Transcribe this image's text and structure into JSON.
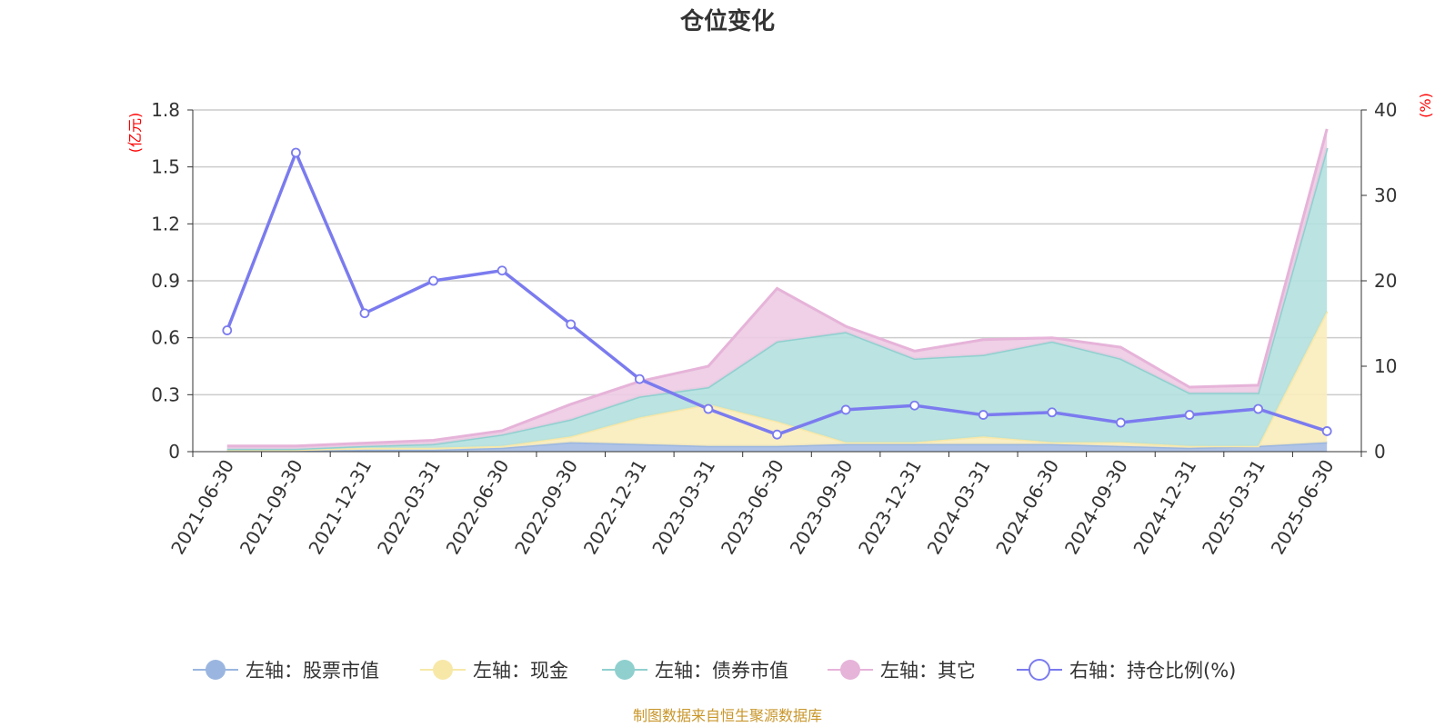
{
  "chart_data": {
    "type": "area",
    "title": "仓位变化",
    "left_axis_unit": "(亿元)",
    "right_axis_unit": "(%)",
    "source": "制图数据来自恒生聚源数据库",
    "categories": [
      "2021-06-30",
      "2021-09-30",
      "2021-12-31",
      "2022-03-31",
      "2022-06-30",
      "2022-09-30",
      "2022-12-31",
      "2023-03-31",
      "2023-06-30",
      "2023-09-30",
      "2023-12-31",
      "2024-03-31",
      "2024-06-30",
      "2024-09-30",
      "2024-12-31",
      "2025-03-31",
      "2025-06-30"
    ],
    "left_ylim": [
      0,
      1.8
    ],
    "left_ticks": [
      0,
      0.3,
      0.6,
      0.9,
      1.2,
      1.5,
      1.8
    ],
    "left_tick_labels": [
      "0",
      "0.3",
      "0.6",
      "0.9",
      "1.2",
      "1.5",
      "1.8"
    ],
    "right_ylim": [
      0,
      40
    ],
    "right_ticks": [
      0,
      10,
      20,
      30,
      40
    ],
    "right_tick_labels": [
      "0",
      "10",
      "20",
      "30",
      "40"
    ],
    "grid": true,
    "legend_position": "bottom",
    "stacked_series": [
      {
        "name": "左轴：股票市值",
        "color": "#9ab6e0",
        "fill": "#a6bde3",
        "values": [
          0.005,
          0.005,
          0.01,
          0.01,
          0.02,
          0.05,
          0.04,
          0.03,
          0.03,
          0.04,
          0.04,
          0.04,
          0.04,
          0.03,
          0.02,
          0.03,
          0.05
        ]
      },
      {
        "name": "左轴：现金",
        "color": "#f8e8a8",
        "fill": "#f9ecbc",
        "values": [
          0.005,
          0.005,
          0.01,
          0.01,
          0.01,
          0.03,
          0.14,
          0.22,
          0.13,
          0.01,
          0.01,
          0.04,
          0.01,
          0.02,
          0.01,
          0.0,
          0.69
        ]
      },
      {
        "name": "左轴：债券市值",
        "color": "#8fd0cf",
        "fill": "#b2e0df",
        "values": [
          0.005,
          0.005,
          0.01,
          0.02,
          0.06,
          0.09,
          0.11,
          0.09,
          0.42,
          0.58,
          0.44,
          0.43,
          0.53,
          0.44,
          0.28,
          0.28,
          0.86
        ]
      },
      {
        "name": "左轴：其它",
        "color": "#e6b3d9",
        "fill": "#edcbe3",
        "values": [
          0.015,
          0.015,
          0.015,
          0.02,
          0.02,
          0.08,
          0.08,
          0.11,
          0.28,
          0.03,
          0.04,
          0.08,
          0.02,
          0.06,
          0.03,
          0.04,
          0.1
        ]
      }
    ],
    "line_series": {
      "name": "右轴：持仓比例(%)",
      "color": "#7b7bef",
      "values": [
        14.2,
        35.0,
        16.2,
        20.0,
        21.2,
        14.9,
        8.5,
        5.0,
        2.0,
        4.9,
        5.4,
        4.3,
        4.6,
        3.4,
        4.3,
        5.0,
        2.4
      ]
    }
  }
}
